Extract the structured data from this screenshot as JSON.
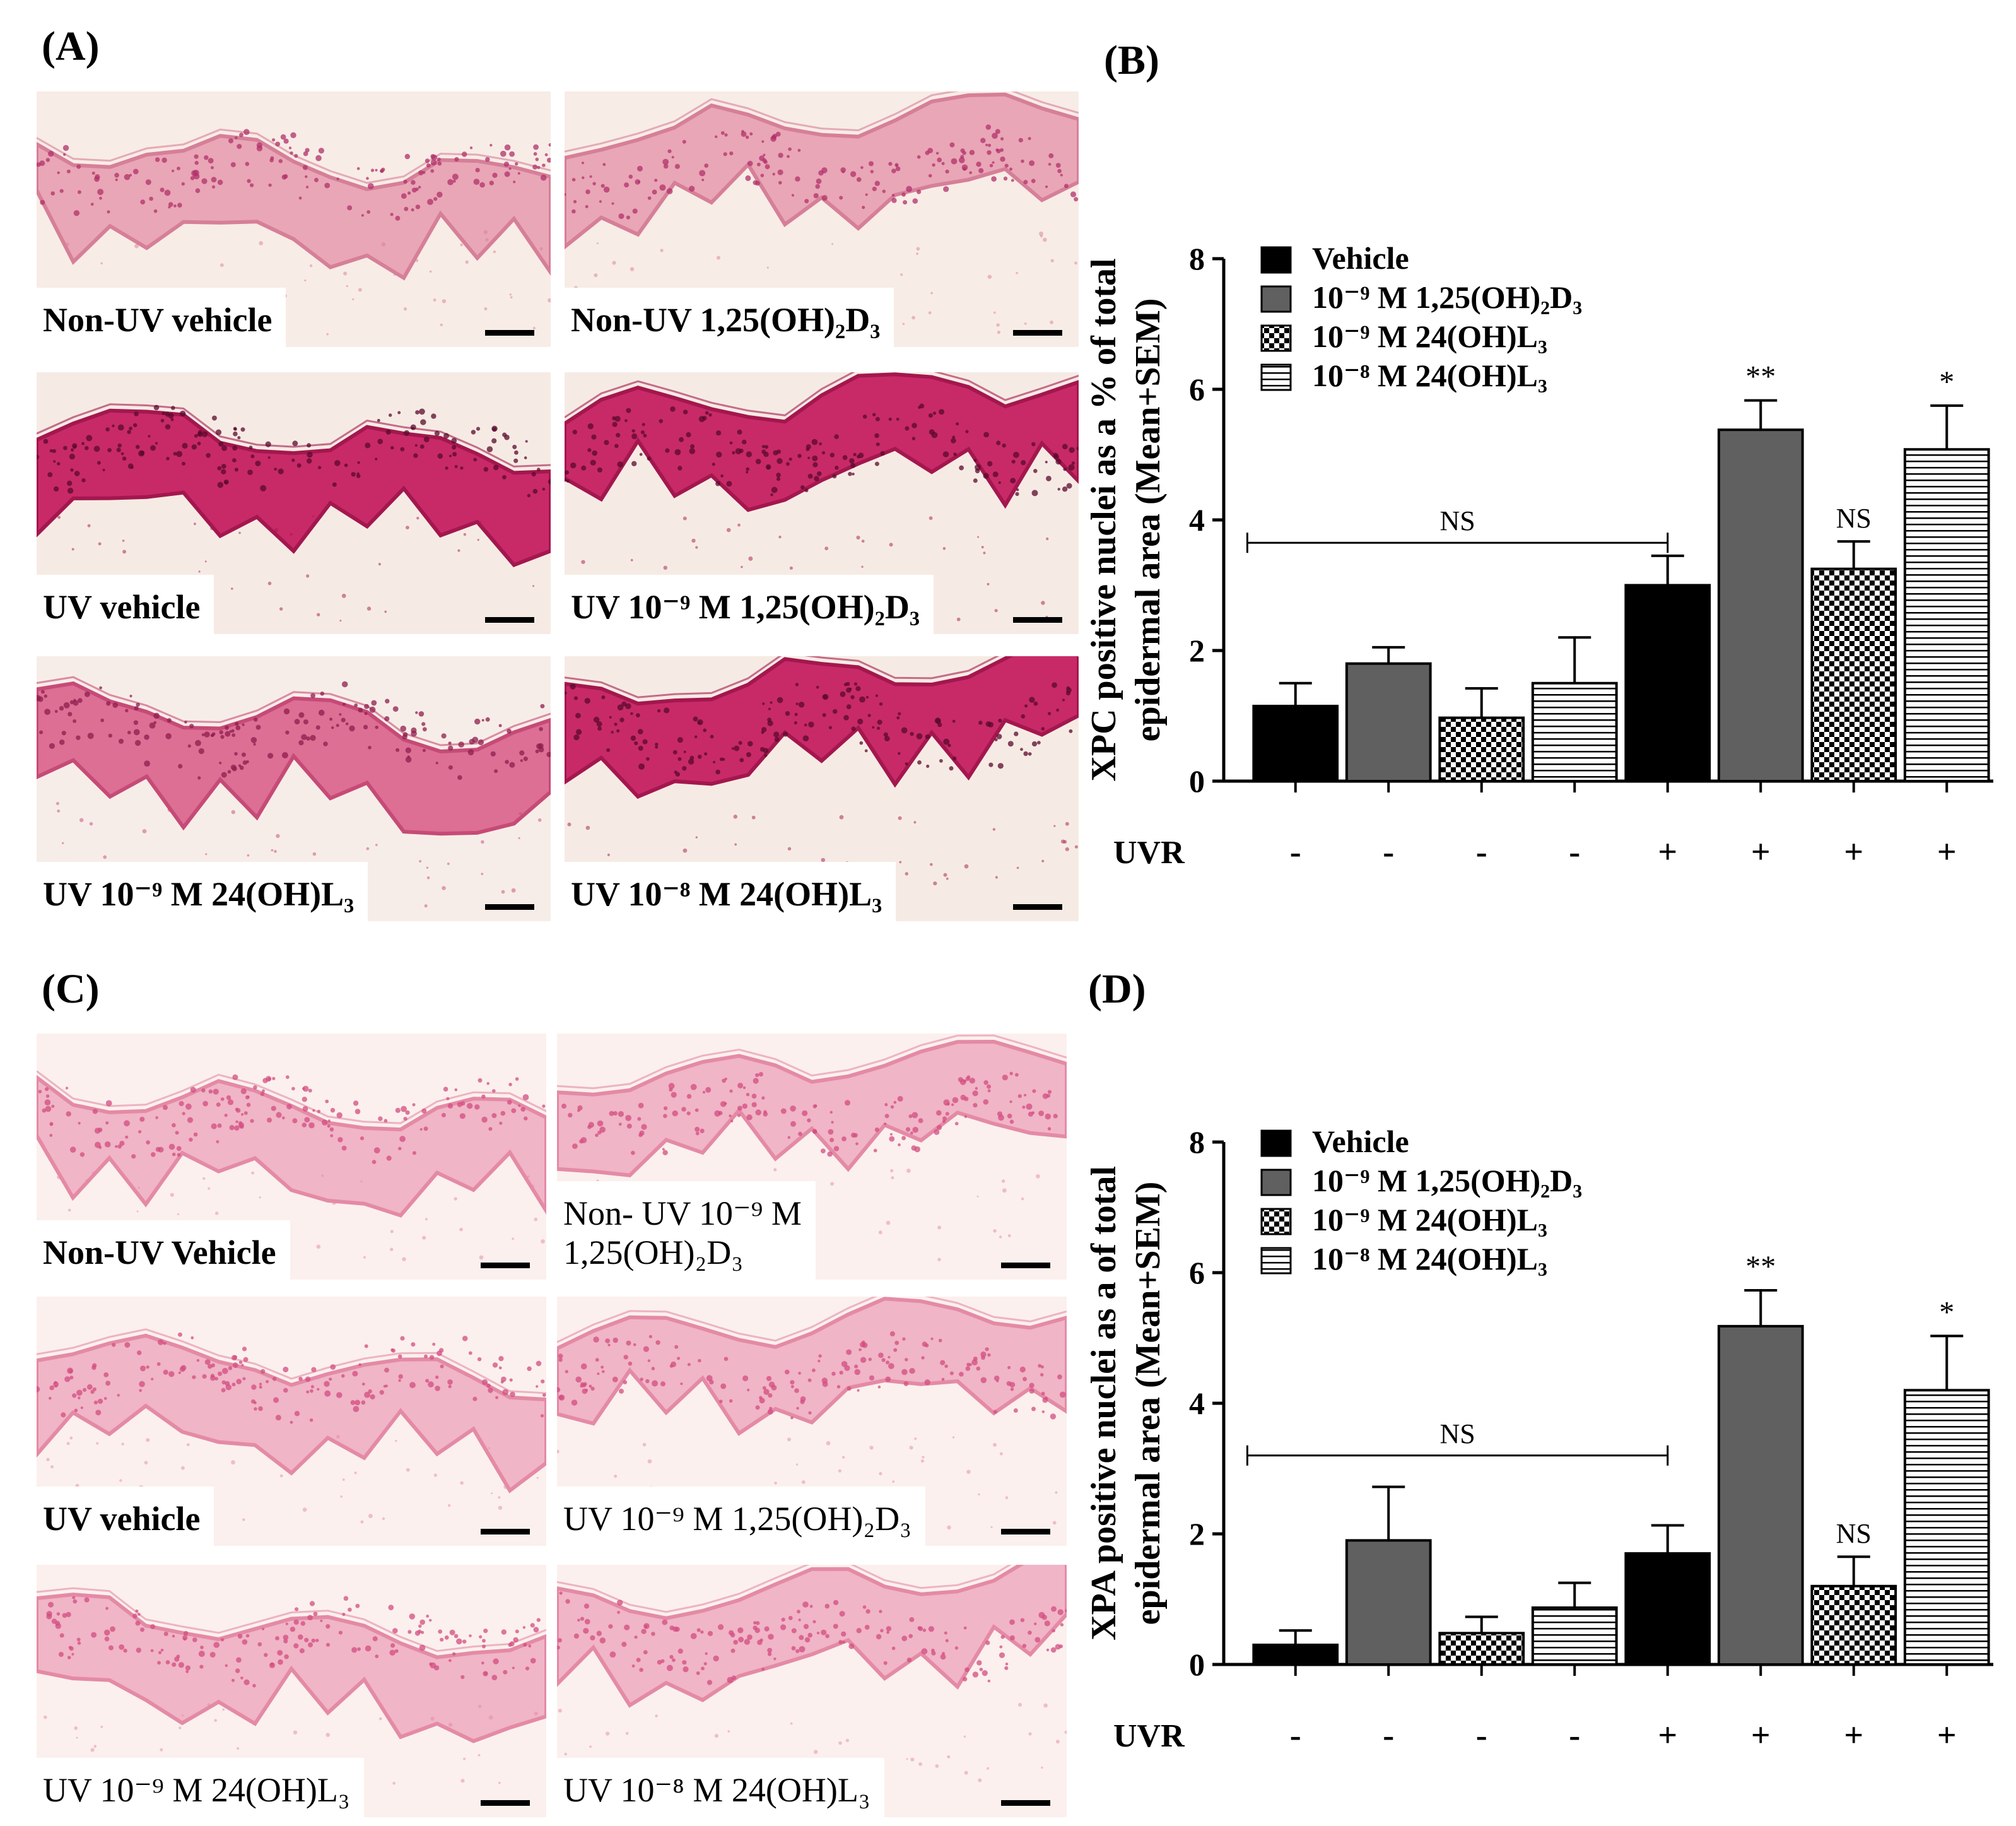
{
  "panels": {
    "A": {
      "label": "(A)",
      "images": [
        {
          "caption": "Non-UV vehicle",
          "style": "light",
          "bold": true
        },
        {
          "caption": "Non-UV 1,25(OH)₂D₃",
          "style": "light",
          "bold": true
        },
        {
          "caption": "UV vehicle",
          "style": "dark",
          "bold": true
        },
        {
          "caption": "UV 10⁻⁹ M 1,25(OH)₂D₃",
          "style": "dark",
          "bold": true
        },
        {
          "caption": "UV 10⁻⁹ M 24(OH)L₃",
          "style": "medium",
          "bold": true
        },
        {
          "caption": "UV 10⁻⁸ M 24(OH)L₃",
          "style": "dark",
          "bold": true
        }
      ]
    },
    "C": {
      "label": "(C)",
      "images": [
        {
          "caption": "Non-UV Vehicle",
          "style": "pale",
          "bold": true
        },
        {
          "caption": "Non- UV 10⁻⁹ M",
          "caption2": "1,25(OH)₂D₃",
          "style": "pale",
          "bold": false
        },
        {
          "caption": "UV vehicle",
          "style": "pale",
          "bold": true
        },
        {
          "caption": "UV 10⁻⁹ M 1,25(OH)₂D₃",
          "style": "pale",
          "bold": false
        },
        {
          "caption": "UV 10⁻⁹ M 24(OH)L₃",
          "style": "pale",
          "bold": false
        },
        {
          "caption": "UV 10⁻⁸ M 24(OH)L₃",
          "style": "pale",
          "bold": false
        }
      ]
    },
    "B": {
      "label": "(B)"
    },
    "D": {
      "label": "(D)"
    }
  },
  "colors": {
    "vehicle": "#000000",
    "d3": "#606060",
    "checker": "#000000",
    "stripe": "#000000",
    "stain_dark": "#c2185b",
    "stain_light": "#f3c6d3"
  },
  "chart_data": [
    {
      "type": "bar",
      "id": "B",
      "ylabel_line1": "XPC positive nuclei as a % of total",
      "ylabel_line2": "epidermal area (Mean+SEM)",
      "ylim": [
        0,
        8
      ],
      "yticks": [
        0,
        2,
        4,
        6,
        8
      ],
      "legend": [
        {
          "name": "Vehicle",
          "pattern": "black"
        },
        {
          "name": "10⁻⁹ M 1,25(OH)₂D₃",
          "pattern": "gray"
        },
        {
          "name": "10⁻⁹ M 24(OH)L₃",
          "pattern": "checker"
        },
        {
          "name": "10⁻⁸ M 24(OH)L₃",
          "pattern": "stripe"
        }
      ],
      "bars": [
        {
          "pattern": "black",
          "value": 1.15,
          "err": 0.35,
          "uvr": "-",
          "sig": ""
        },
        {
          "pattern": "gray",
          "value": 1.8,
          "err": 0.25,
          "uvr": "-",
          "sig": ""
        },
        {
          "pattern": "checker",
          "value": 0.97,
          "err": 0.45,
          "uvr": "-",
          "sig": ""
        },
        {
          "pattern": "stripe",
          "value": 1.5,
          "err": 0.7,
          "uvr": "-",
          "sig": ""
        },
        {
          "pattern": "black",
          "value": 3.0,
          "err": 0.45,
          "uvr": "+",
          "sig": ""
        },
        {
          "pattern": "gray",
          "value": 5.38,
          "err": 0.45,
          "uvr": "+",
          "sig": "**"
        },
        {
          "pattern": "checker",
          "value": 3.25,
          "err": 0.42,
          "uvr": "+",
          "sig": "NS"
        },
        {
          "pattern": "stripe",
          "value": 5.08,
          "err": 0.67,
          "uvr": "+",
          "sig": "*"
        }
      ],
      "bracket": {
        "label": "NS",
        "y": 3.65
      },
      "uvr_label": "UVR"
    },
    {
      "type": "bar",
      "id": "D",
      "ylabel_line1": "XPA positive nuclei as a of total",
      "ylabel_line2": "epidermal area (Mean+SEM)",
      "ylim": [
        0,
        8
      ],
      "yticks": [
        0,
        2,
        4,
        6,
        8
      ],
      "legend": [
        {
          "name": "Vehicle",
          "pattern": "black"
        },
        {
          "name": "10⁻⁹ M 1,25(OH)₂D₃",
          "pattern": "gray"
        },
        {
          "name": "10⁻⁹ M 24(OH)L₃",
          "pattern": "checker"
        },
        {
          "name": "10⁻⁸ M 24(OH)L₃",
          "pattern": "stripe"
        }
      ],
      "bars": [
        {
          "pattern": "black",
          "value": 0.3,
          "err": 0.22,
          "uvr": "-",
          "sig": ""
        },
        {
          "pattern": "gray",
          "value": 1.9,
          "err": 0.82,
          "uvr": "-",
          "sig": ""
        },
        {
          "pattern": "checker",
          "value": 0.48,
          "err": 0.25,
          "uvr": "-",
          "sig": ""
        },
        {
          "pattern": "stripe",
          "value": 0.87,
          "err": 0.38,
          "uvr": "-",
          "sig": ""
        },
        {
          "pattern": "black",
          "value": 1.7,
          "err": 0.43,
          "uvr": "+",
          "sig": ""
        },
        {
          "pattern": "gray",
          "value": 5.18,
          "err": 0.55,
          "uvr": "+",
          "sig": "**"
        },
        {
          "pattern": "checker",
          "value": 1.2,
          "err": 0.45,
          "uvr": "+",
          "sig": "NS"
        },
        {
          "pattern": "stripe",
          "value": 4.2,
          "err": 0.83,
          "uvr": "+",
          "sig": "*"
        }
      ],
      "bracket": {
        "label": "NS",
        "y": 3.2
      },
      "uvr_label": "UVR"
    }
  ]
}
